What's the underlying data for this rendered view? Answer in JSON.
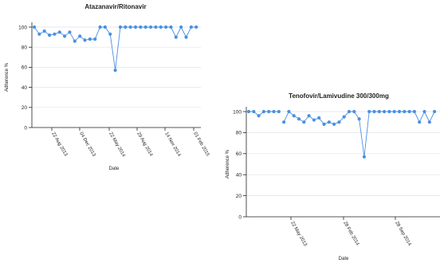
{
  "colors": {
    "series": "#4a90e2",
    "axis": "#222222",
    "grid": "#e3e3e3"
  },
  "chart_data": [
    {
      "type": "line",
      "title": "Atazanavir/Ritonavir",
      "xlabel": "Date",
      "ylabel": "Adherence %",
      "ylim": [
        0,
        100
      ],
      "yticks": [
        "0",
        "20",
        "40",
        "60",
        "80",
        "100"
      ],
      "grid": true,
      "x_tick_labels": [
        "22 Aug 2013",
        "04 Dec 2013",
        "22 May 2014",
        "29 Aug 2014",
        "14 Nov 2014",
        "01 Feb 2015"
      ],
      "series": [
        {
          "values": [
            100,
            93,
            96,
            92,
            93,
            95,
            91,
            95,
            86,
            91,
            87,
            88,
            88,
            100,
            100,
            93,
            57,
            100,
            100,
            100,
            100,
            100,
            100,
            100,
            100,
            100,
            100,
            100,
            90,
            100,
            90,
            100,
            100
          ]
        }
      ]
    },
    {
      "type": "line",
      "title": "Tenofovir/Lamivudine 300/300mg",
      "xlabel": "Date",
      "ylabel": "Adherence %",
      "ylim": [
        0,
        100
      ],
      "yticks": [
        "0",
        "20",
        "40",
        "60",
        "80",
        "100"
      ],
      "grid": true,
      "x_tick_labels": [
        "22 May 2013",
        "28 Feb 2014",
        "28 Sep 2014"
      ],
      "series": [
        {
          "values": [
            100,
            100,
            96,
            100,
            100,
            100,
            100,
            90,
            100,
            96,
            93,
            90,
            96,
            92,
            94,
            88,
            90,
            88,
            90,
            95,
            100,
            100,
            93,
            57,
            100,
            100,
            100,
            100,
            100,
            100,
            100,
            100,
            100,
            100,
            90,
            100,
            90,
            100,
            100
          ]
        }
      ]
    }
  ]
}
